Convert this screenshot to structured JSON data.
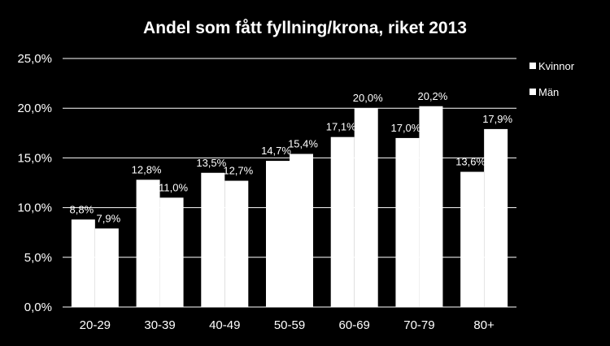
{
  "chart_data": {
    "type": "bar",
    "title": "Andel som fått fyllning/krona, riket 2013",
    "xlabel": "",
    "ylabel": "",
    "categories": [
      "20-29",
      "30-39",
      "40-49",
      "50-59",
      "60-69",
      "70-79",
      "80+"
    ],
    "series": [
      {
        "name": "Kvinnor",
        "values": [
          8.8,
          12.8,
          13.5,
          14.7,
          17.1,
          17.0,
          13.6
        ],
        "labels": [
          "8,8%",
          "12,8%",
          "13,5%",
          "14,7%",
          "17,1%",
          "17,0%",
          "13,6%"
        ]
      },
      {
        "name": "Män",
        "values": [
          7.9,
          11.0,
          12.7,
          15.4,
          20.0,
          20.2,
          17.9
        ],
        "labels": [
          "7,9%",
          "11,0%",
          "12,7%",
          "15,4%",
          "20,0%",
          "20,2%",
          "17,9%"
        ]
      }
    ],
    "ylim": [
      0,
      25
    ],
    "yticks": [
      0,
      5,
      10,
      15,
      20,
      25
    ],
    "ytick_labels": [
      "0,0%",
      "5,0%",
      "10,0%",
      "15,0%",
      "20,0%",
      "25,0%"
    ],
    "grid": true,
    "legend_position": "right",
    "colors": {
      "background": "#000000",
      "bars": "#ffffff",
      "text": "#ffffff",
      "gridlines": "#ffffff"
    }
  }
}
